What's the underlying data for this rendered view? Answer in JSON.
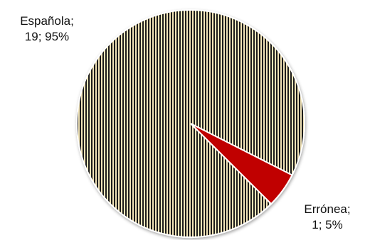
{
  "chart_data": {
    "type": "pie",
    "title": "",
    "slices": [
      {
        "label": "Española",
        "value": 19,
        "percent": 95,
        "label_line1": "Española;",
        "label_line2": "19; 95%",
        "color": "#f2e4b8",
        "pattern": "vertical-stripes",
        "stripe_color": "#1a1a1a"
      },
      {
        "label": "Errónea",
        "value": 1,
        "percent": 5,
        "label_line1": "Errónea;",
        "label_line2": "1; 5%",
        "color": "#c00000"
      }
    ],
    "start_angle_deg": 0,
    "legend": "none"
  }
}
